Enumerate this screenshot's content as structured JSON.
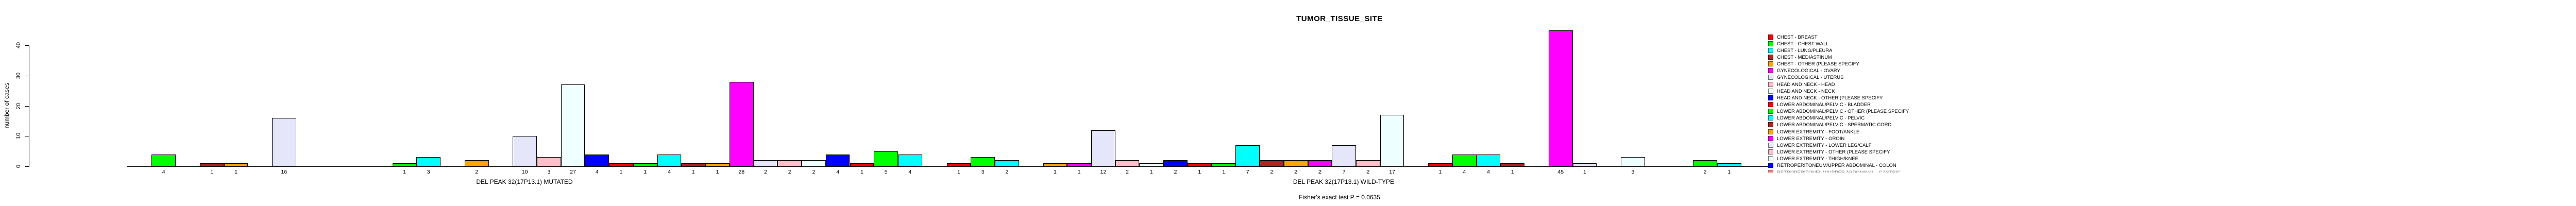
{
  "chart_data": {
    "type": "bar",
    "title": "TUMOR_TISSUE_SITE",
    "ylabel": "number of cases",
    "subtitle": "Fisher's exact test P = 0.0635",
    "ylim": [
      0,
      40
    ],
    "yticks": [
      0,
      10,
      20,
      30,
      40
    ],
    "grid": false,
    "legend_position": "right",
    "n_category_slots_per_group": 33,
    "palette": [
      "#FF0000",
      "#00FF00",
      "#00FFFF",
      "#B22222",
      "#FFA500",
      "#FF00FF",
      "#E6E6FA",
      "#FFC0CB",
      "#F0FFFF",
      "#0000FF"
    ],
    "groups": [
      {
        "label": "DEL PEAK 32(17P13.1) MUTATED",
        "values": [
          0,
          4,
          0,
          1,
          1,
          0,
          16,
          0,
          0,
          0,
          0,
          1,
          3,
          0,
          2,
          0,
          10,
          3,
          27,
          4,
          1,
          1,
          4,
          1,
          1,
          28,
          2,
          2,
          2,
          4,
          1,
          5,
          4
        ]
      },
      {
        "label": "DEL PEAK 32(17P13.1) WILD-TYPE",
        "values": [
          1,
          3,
          2,
          0,
          1,
          1,
          12,
          2,
          1,
          2,
          1,
          1,
          7,
          2,
          2,
          2,
          7,
          2,
          17,
          0,
          1,
          4,
          4,
          1,
          0,
          45,
          1,
          0,
          3,
          0,
          0,
          2,
          1
        ]
      }
    ],
    "legend": {
      "clipped_last_entry": true,
      "entries": [
        {
          "label": "CHEST - BREAST",
          "color": "#FF0000"
        },
        {
          "label": "CHEST - CHEST WALL",
          "color": "#00FF00"
        },
        {
          "label": "CHEST - LUNG/PLEURA",
          "color": "#00FFFF"
        },
        {
          "label": "CHEST - MEDIASTINUM",
          "color": "#B22222"
        },
        {
          "label": "CHEST - OTHER (PLEASE SPECIFY",
          "color": "#FFA500"
        },
        {
          "label": "GYNECOLOGICAL - OVARY",
          "color": "#FF00FF"
        },
        {
          "label": "GYNECOLOGICAL - UTERUS",
          "color": "#E6E6FA"
        },
        {
          "label": "HEAD AND NECK - HEAD",
          "color": "#FFC0CB"
        },
        {
          "label": "HEAD AND NECK - NECK",
          "color": "#F0FFFF"
        },
        {
          "label": "HEAD AND NECK - OTHER (PLEASE SPECIFY",
          "color": "#0000FF"
        },
        {
          "label": "LOWER ABDOMINAL/PELVIC - BLADDER",
          "color": "#FF0000"
        },
        {
          "label": "LOWER ABDOMINAL/PELVIC - OTHER (PLEASE SPECIFY",
          "color": "#00FF00"
        },
        {
          "label": "LOWER ABDOMINAL/PELVIC - PELVIC",
          "color": "#00FFFF"
        },
        {
          "label": "LOWER ABDOMINAL/PELVIC - SPERMATIC CORD",
          "color": "#B22222"
        },
        {
          "label": "LOWER EXTREMITY - FOOT/ANKLE",
          "color": "#FFA500"
        },
        {
          "label": "LOWER EXTREMITY - GROIN",
          "color": "#FF00FF"
        },
        {
          "label": "LOWER EXTREMITY - LOWER LEG/CALF",
          "color": "#E6E6FA"
        },
        {
          "label": "LOWER EXTREMITY - OTHER (PLEASE SPECIFY",
          "color": "#FFC0CB"
        },
        {
          "label": "LOWER EXTREMITY - THIGH/KNEE",
          "color": "#F0FFFF"
        },
        {
          "label": "RETROPERITONEUM/UPPER ABDOMINAL - COLON",
          "color": "#0000FF"
        },
        {
          "label": "RETROPERITONEUM/UPPER ABDOMINAL - GASTRIC",
          "color": "#FF0000"
        }
      ]
    }
  }
}
